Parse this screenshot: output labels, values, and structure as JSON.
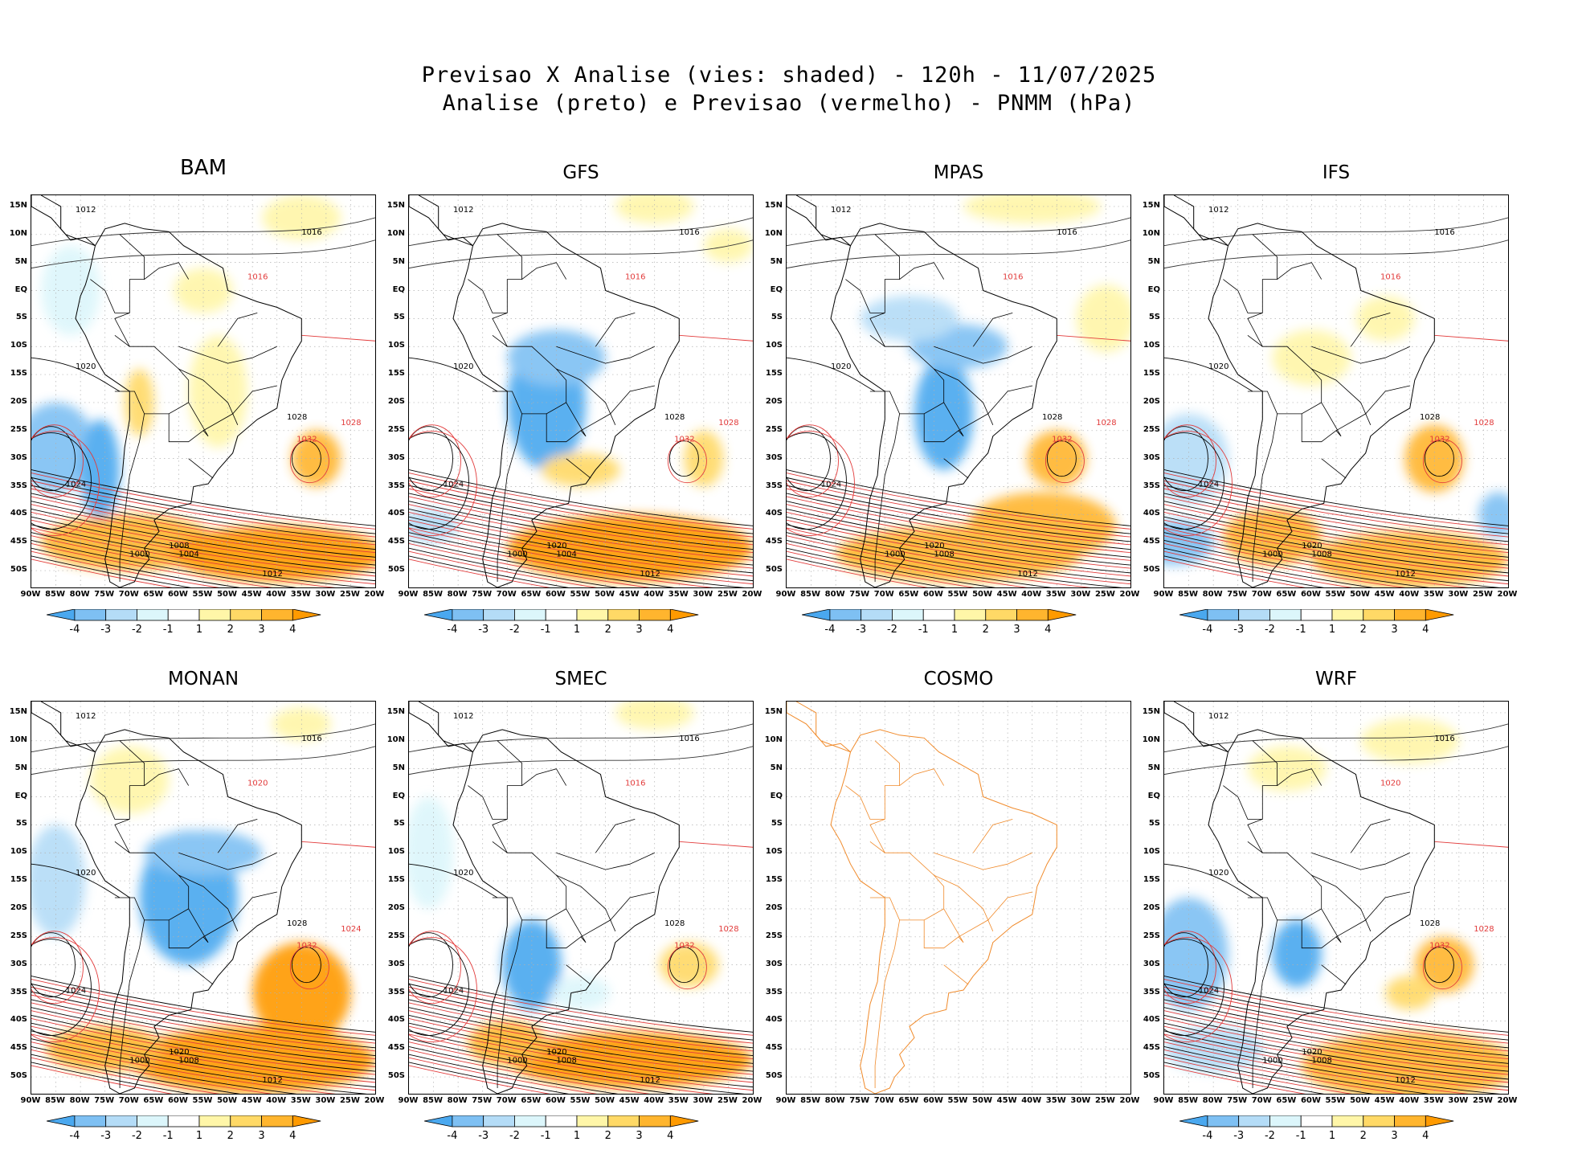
{
  "header": {
    "title_line1": "Previsao X Analise (vies: shaded) - 120h - 11/07/2025",
    "title_line2": "Analise (preto) e Previsao (vermelho) - PNMM (hPa)"
  },
  "axes": {
    "lat_labels": [
      "15N",
      "10N",
      "5N",
      "EQ",
      "5S",
      "10S",
      "15S",
      "20S",
      "25S",
      "30S",
      "35S",
      "40S",
      "45S",
      "50S"
    ],
    "lon_labels": [
      "90W",
      "85W",
      "80W",
      "75W",
      "70W",
      "65W",
      "60W",
      "55W",
      "50W",
      "45W",
      "40W",
      "35W",
      "30W",
      "25W",
      "20W"
    ]
  },
  "colorbar": {
    "labels": [
      "-4",
      "-3",
      "-2",
      "-1",
      "1",
      "2",
      "3",
      "4"
    ],
    "colors": [
      "#4aa8ef",
      "#7ec0f3",
      "#b4dcf7",
      "#dcf6fb",
      "#ffffff",
      "#fff6a8",
      "#ffd966",
      "#ffb52e",
      "#ff9a00"
    ]
  },
  "colors": {
    "analysis_line": "#000000",
    "forecast_line": "#e23b3b",
    "cosmo_coast": "#f08a2a",
    "grid": "#b0b0b0"
  },
  "panels": [
    {
      "model": "BAM",
      "has_data": true,
      "contours": [
        {
          "label": "1012",
          "color": "black"
        },
        {
          "label": "1016",
          "color": "black"
        },
        {
          "label": "1016",
          "color": "red"
        },
        {
          "label": "1020",
          "color": "black"
        },
        {
          "label": "1024",
          "color": "black"
        },
        {
          "label": "1028",
          "color": "black"
        },
        {
          "label": "1032",
          "color": "red"
        },
        {
          "label": "1028",
          "color": "red"
        },
        {
          "label": "1008",
          "color": "black"
        },
        {
          "label": "1004",
          "color": "black"
        },
        {
          "label": "1000",
          "color": "black"
        },
        {
          "label": "1012",
          "color": "black"
        }
      ]
    },
    {
      "model": "GFS",
      "has_data": true,
      "contours": [
        {
          "label": "1012",
          "color": "black"
        },
        {
          "label": "1016",
          "color": "black"
        },
        {
          "label": "1016",
          "color": "red"
        },
        {
          "label": "1020",
          "color": "black"
        },
        {
          "label": "1024",
          "color": "black"
        },
        {
          "label": "1028",
          "color": "black"
        },
        {
          "label": "1032",
          "color": "red"
        },
        {
          "label": "1028",
          "color": "red"
        },
        {
          "label": "1020",
          "color": "black"
        },
        {
          "label": "1004",
          "color": "black"
        },
        {
          "label": "1000",
          "color": "black"
        },
        {
          "label": "1012",
          "color": "black"
        }
      ]
    },
    {
      "model": "MPAS",
      "has_data": true,
      "contours": [
        {
          "label": "1012",
          "color": "black"
        },
        {
          "label": "1016",
          "color": "black"
        },
        {
          "label": "1016",
          "color": "red"
        },
        {
          "label": "1020",
          "color": "black"
        },
        {
          "label": "1024",
          "color": "black"
        },
        {
          "label": "1028",
          "color": "black"
        },
        {
          "label": "1032",
          "color": "red"
        },
        {
          "label": "1028",
          "color": "red"
        },
        {
          "label": "1020",
          "color": "black"
        },
        {
          "label": "1008",
          "color": "black"
        },
        {
          "label": "1000",
          "color": "black"
        },
        {
          "label": "1012",
          "color": "black"
        }
      ]
    },
    {
      "model": "IFS",
      "has_data": true,
      "contours": [
        {
          "label": "1012",
          "color": "black"
        },
        {
          "label": "1016",
          "color": "black"
        },
        {
          "label": "1016",
          "color": "red"
        },
        {
          "label": "1020",
          "color": "black"
        },
        {
          "label": "1024",
          "color": "black"
        },
        {
          "label": "1028",
          "color": "black"
        },
        {
          "label": "1032",
          "color": "red"
        },
        {
          "label": "1028",
          "color": "red"
        },
        {
          "label": "1020",
          "color": "black"
        },
        {
          "label": "1008",
          "color": "black"
        },
        {
          "label": "1000",
          "color": "black"
        },
        {
          "label": "1012",
          "color": "black"
        }
      ]
    },
    {
      "model": "MONAN",
      "has_data": true,
      "contours": [
        {
          "label": "1012",
          "color": "black"
        },
        {
          "label": "1016",
          "color": "black"
        },
        {
          "label": "1020",
          "color": "red"
        },
        {
          "label": "1020",
          "color": "black"
        },
        {
          "label": "1024",
          "color": "black"
        },
        {
          "label": "1028",
          "color": "black"
        },
        {
          "label": "1032",
          "color": "red"
        },
        {
          "label": "1024",
          "color": "red"
        },
        {
          "label": "1020",
          "color": "black"
        },
        {
          "label": "1008",
          "color": "black"
        },
        {
          "label": "1000",
          "color": "black"
        },
        {
          "label": "1012",
          "color": "black"
        }
      ]
    },
    {
      "model": "SMEC",
      "has_data": true,
      "contours": [
        {
          "label": "1012",
          "color": "black"
        },
        {
          "label": "1016",
          "color": "black"
        },
        {
          "label": "1016",
          "color": "red"
        },
        {
          "label": "1020",
          "color": "black"
        },
        {
          "label": "1024",
          "color": "black"
        },
        {
          "label": "1028",
          "color": "black"
        },
        {
          "label": "1032",
          "color": "red"
        },
        {
          "label": "1028",
          "color": "red"
        },
        {
          "label": "1020",
          "color": "black"
        },
        {
          "label": "1008",
          "color": "black"
        },
        {
          "label": "1000",
          "color": "black"
        },
        {
          "label": "1012",
          "color": "black"
        }
      ]
    },
    {
      "model": "COSMO",
      "has_data": false,
      "contours": []
    },
    {
      "model": "WRF",
      "has_data": true,
      "contours": [
        {
          "label": "1012",
          "color": "black"
        },
        {
          "label": "1016",
          "color": "black"
        },
        {
          "label": "1020",
          "color": "red"
        },
        {
          "label": "1020",
          "color": "black"
        },
        {
          "label": "1024",
          "color": "black"
        },
        {
          "label": "1028",
          "color": "black"
        },
        {
          "label": "1032",
          "color": "red"
        },
        {
          "label": "1028",
          "color": "red"
        },
        {
          "label": "1020",
          "color": "black"
        },
        {
          "label": "1008",
          "color": "black"
        },
        {
          "label": "1000",
          "color": "black"
        },
        {
          "label": "1012",
          "color": "black"
        }
      ]
    }
  ]
}
